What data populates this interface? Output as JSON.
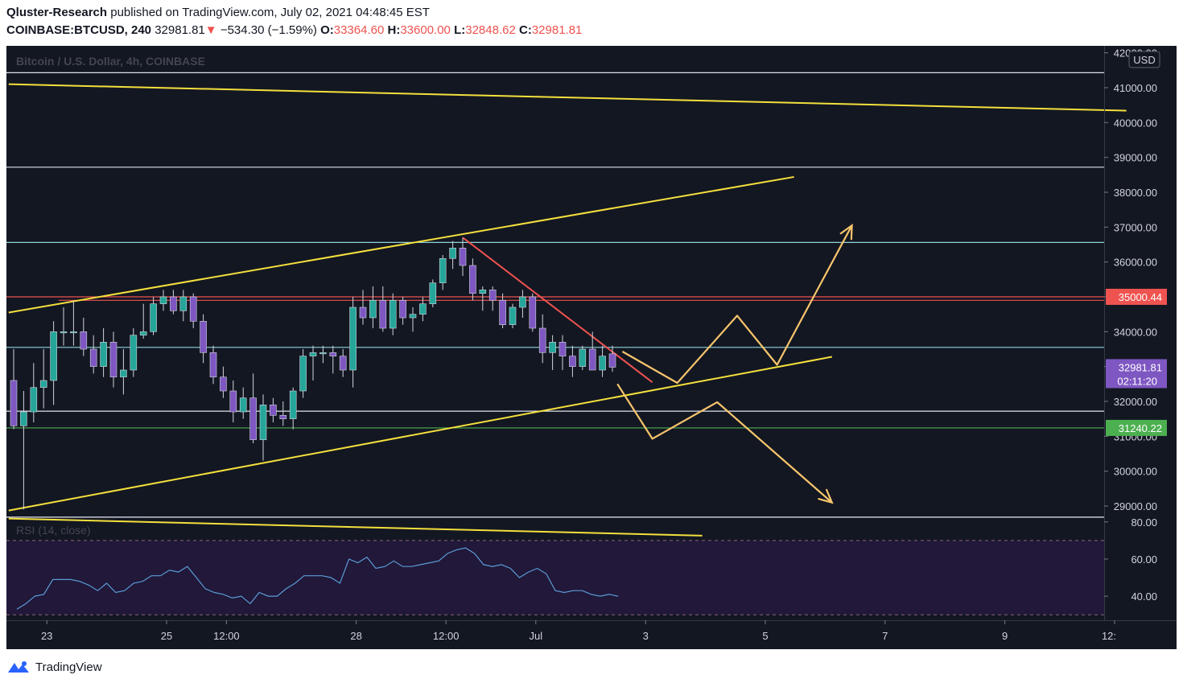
{
  "header": {
    "author": "Qluster-Research",
    "published": "published on TradingView.com, July 02, 2021 04:48:45 EST",
    "symbol": "COINBASE:BTCUSD, 240",
    "last": "32981.81",
    "change_arrow": "▼",
    "change": "−534.30 (−1.59%)",
    "o_label": "O:",
    "o_value": "33364.60",
    "h_label": "H:",
    "h_value": "33600.00",
    "l_label": "L:",
    "l_value": "32848.62",
    "c_label": "C:",
    "c_value": "32981.81"
  },
  "footer": {
    "brand": "TradingView",
    "logo_icon": "tradingview-logo-icon"
  },
  "colors": {
    "background": "#131722",
    "rsi_band": "#21183a",
    "up": "#26a69a",
    "down": "#7e57c2",
    "yellow": "#f5e03c",
    "orange_path": "#f7c56c",
    "red_line": "#ef5350",
    "green_line": "#4caf50",
    "cyan_line": "#8fd3dc",
    "white_line": "#e0e3eb",
    "axis_text": "#d1d4dc"
  },
  "chart_data": {
    "type": "candlestick",
    "title": "Bitcoin / U.S. Dollar, 4h, COINBASE",
    "currency_button": "USD",
    "y_ticks": [
      "42000.00",
      "41000.00",
      "40000.00",
      "39000.00",
      "38000.00",
      "37000.00",
      "36000.00",
      "35000.00",
      "34000.00",
      "33000.00",
      "32000.00",
      "31000.00",
      "30000.00",
      "29000.00"
    ],
    "ylim": [
      28700,
      42200
    ],
    "x_ticks": [
      {
        "label": "23",
        "bar": 3
      },
      {
        "label": "25",
        "bar": 15
      },
      {
        "label": "12:00",
        "bar": 21
      },
      {
        "label": "28",
        "bar": 34
      },
      {
        "label": "12:00",
        "bar": 43
      },
      {
        "label": "Jul",
        "bar": 52
      },
      {
        "label": "3",
        "bar": 63
      },
      {
        "label": "5",
        "bar": 75
      },
      {
        "label": "7",
        "bar": 87
      },
      {
        "label": "9",
        "bar": 99
      },
      {
        "label": "12:",
        "bar": 110
      }
    ],
    "price_labels": [
      {
        "value": "35000.44",
        "price": 35000.44,
        "color": "#ef5350"
      },
      {
        "value": "32981.81",
        "sub": "02:11:20",
        "price": 32981.81,
        "color": "#7e57c2"
      },
      {
        "value": "31240.22",
        "price": 31240.22,
        "color": "#4caf50"
      }
    ],
    "candles": [
      {
        "o": 32600,
        "h": 33500,
        "l": 31200,
        "c": 31300
      },
      {
        "o": 31300,
        "h": 32300,
        "l": 28900,
        "c": 31700
      },
      {
        "o": 31700,
        "h": 33100,
        "l": 31400,
        "c": 32400
      },
      {
        "o": 32400,
        "h": 33500,
        "l": 31800,
        "c": 32600
      },
      {
        "o": 32600,
        "h": 34300,
        "l": 31900,
        "c": 34000
      },
      {
        "o": 34000,
        "h": 34700,
        "l": 33600,
        "c": 34000
      },
      {
        "o": 34000,
        "h": 34900,
        "l": 33600,
        "c": 34000
      },
      {
        "o": 34000,
        "h": 34400,
        "l": 33300,
        "c": 33500
      },
      {
        "o": 33500,
        "h": 33900,
        "l": 32800,
        "c": 33000
      },
      {
        "o": 33000,
        "h": 34100,
        "l": 32700,
        "c": 33700
      },
      {
        "o": 33700,
        "h": 34000,
        "l": 32400,
        "c": 32700
      },
      {
        "o": 32700,
        "h": 33500,
        "l": 32200,
        "c": 32900
      },
      {
        "o": 32900,
        "h": 34100,
        "l": 32700,
        "c": 33900
      },
      {
        "o": 33900,
        "h": 34800,
        "l": 33800,
        "c": 34000
      },
      {
        "o": 34000,
        "h": 35000,
        "l": 33900,
        "c": 34800
      },
      {
        "o": 34800,
        "h": 35200,
        "l": 34600,
        "c": 35000
      },
      {
        "o": 35000,
        "h": 35200,
        "l": 34500,
        "c": 34600
      },
      {
        "o": 34600,
        "h": 35200,
        "l": 34300,
        "c": 35000
      },
      {
        "o": 35000,
        "h": 35100,
        "l": 34100,
        "c": 34300
      },
      {
        "o": 34300,
        "h": 34500,
        "l": 33100,
        "c": 33400
      },
      {
        "o": 33400,
        "h": 33600,
        "l": 32500,
        "c": 32700
      },
      {
        "o": 32700,
        "h": 33000,
        "l": 32100,
        "c": 32300
      },
      {
        "o": 32300,
        "h": 32600,
        "l": 31400,
        "c": 31700
      },
      {
        "o": 31700,
        "h": 32400,
        "l": 31500,
        "c": 32100
      },
      {
        "o": 32100,
        "h": 32800,
        "l": 30800,
        "c": 30900
      },
      {
        "o": 30900,
        "h": 32200,
        "l": 30300,
        "c": 31900
      },
      {
        "o": 31900,
        "h": 32100,
        "l": 31400,
        "c": 31600
      },
      {
        "o": 31600,
        "h": 32000,
        "l": 31300,
        "c": 31500
      },
      {
        "o": 31500,
        "h": 32400,
        "l": 31200,
        "c": 32300
      },
      {
        "o": 32300,
        "h": 33500,
        "l": 32100,
        "c": 33300
      },
      {
        "o": 33300,
        "h": 33600,
        "l": 32600,
        "c": 33400
      },
      {
        "o": 33400,
        "h": 33600,
        "l": 33100,
        "c": 33400
      },
      {
        "o": 33400,
        "h": 33600,
        "l": 32800,
        "c": 33300
      },
      {
        "o": 33300,
        "h": 33500,
        "l": 32700,
        "c": 32900
      },
      {
        "o": 32900,
        "h": 35000,
        "l": 32400,
        "c": 34700
      },
      {
        "o": 34700,
        "h": 35200,
        "l": 34200,
        "c": 34400
      },
      {
        "o": 34400,
        "h": 35300,
        "l": 34100,
        "c": 34900
      },
      {
        "o": 34900,
        "h": 35300,
        "l": 34000,
        "c": 34100
      },
      {
        "o": 34100,
        "h": 35100,
        "l": 33900,
        "c": 34900
      },
      {
        "o": 34900,
        "h": 35000,
        "l": 34200,
        "c": 34400
      },
      {
        "o": 34400,
        "h": 34700,
        "l": 34000,
        "c": 34500
      },
      {
        "o": 34500,
        "h": 35000,
        "l": 34300,
        "c": 34800
      },
      {
        "o": 34800,
        "h": 35500,
        "l": 34700,
        "c": 35400
      },
      {
        "o": 35400,
        "h": 36200,
        "l": 35200,
        "c": 36100
      },
      {
        "o": 36100,
        "h": 36600,
        "l": 35800,
        "c": 36400
      },
      {
        "o": 36400,
        "h": 36700,
        "l": 35600,
        "c": 35900
      },
      {
        "o": 35900,
        "h": 36100,
        "l": 34900,
        "c": 35100
      },
      {
        "o": 35100,
        "h": 35300,
        "l": 34600,
        "c": 35200
      },
      {
        "o": 35200,
        "h": 35300,
        "l": 34600,
        "c": 34900
      },
      {
        "o": 34900,
        "h": 35100,
        "l": 34100,
        "c": 34200
      },
      {
        "o": 34200,
        "h": 34800,
        "l": 34100,
        "c": 34700
      },
      {
        "o": 34700,
        "h": 35200,
        "l": 34400,
        "c": 35000
      },
      {
        "o": 35000,
        "h": 35100,
        "l": 34000,
        "c": 34100
      },
      {
        "o": 34100,
        "h": 34500,
        "l": 33100,
        "c": 33400
      },
      {
        "o": 33400,
        "h": 33900,
        "l": 32900,
        "c": 33700
      },
      {
        "o": 33700,
        "h": 33900,
        "l": 32900,
        "c": 33300
      },
      {
        "o": 33300,
        "h": 33600,
        "l": 32700,
        "c": 33000
      },
      {
        "o": 33000,
        "h": 33600,
        "l": 32900,
        "c": 33500
      },
      {
        "o": 33500,
        "h": 34000,
        "l": 32900,
        "c": 32900
      },
      {
        "o": 32900,
        "h": 33600,
        "l": 32700,
        "c": 33300
      },
      {
        "o": 33364.6,
        "h": 33600,
        "l": 32848.62,
        "c": 32981.81
      }
    ],
    "horizontal_lines": [
      {
        "price": 41430,
        "color": "#e0e3eb",
        "x0": 0
      },
      {
        "price": 38720,
        "color": "#e0e3eb",
        "x0": 0
      },
      {
        "price": 36560,
        "color": "#8fd3dc",
        "x0": 0
      },
      {
        "price": 35000.44,
        "color": "#ef5350",
        "x0": 0
      },
      {
        "price": 34900,
        "color": "#ef5350",
        "x0": 4.5
      },
      {
        "price": 33550,
        "color": "#8fd3dc",
        "x0": 0
      },
      {
        "price": 31720,
        "color": "#e0e3eb",
        "x0": 0
      },
      {
        "price": 31240.22,
        "color": "#4caf50",
        "x0": 0
      },
      {
        "price": 28680,
        "color": "#e0e3eb",
        "x0": 0
      }
    ],
    "trend_lines": [
      {
        "from": [
          -0.5,
          41100
        ],
        "to": [
          111.5,
          40340
        ],
        "color": "#f5e03c"
      },
      {
        "from": [
          -0.5,
          34550
        ],
        "to": [
          78.2,
          38440
        ],
        "color": "#f5e03c"
      },
      {
        "from": [
          -0.5,
          28870
        ],
        "to": [
          82,
          33280
        ],
        "color": "#f5e03c"
      },
      {
        "from": [
          -0.5,
          28640
        ],
        "to": [
          69,
          28150
        ],
        "color": "#f5e03c"
      },
      {
        "from": [
          45,
          36700
        ],
        "to": [
          64,
          32550
        ],
        "color": "#ef5350"
      }
    ],
    "projection_up": [
      [
        61,
        33430
      ],
      [
        66.5,
        32530
      ],
      [
        72.5,
        34460
      ],
      [
        76.5,
        33050
      ],
      [
        84,
        37050
      ]
    ],
    "projection_down": [
      [
        60.5,
        32500
      ],
      [
        64,
        30930
      ],
      [
        70.5,
        31980
      ],
      [
        82,
        29100
      ]
    ],
    "rsi": {
      "label": "RSI (14, close)",
      "levels": [
        70,
        30
      ],
      "ticks": [
        "80.00",
        "60.00",
        "40.00"
      ],
      "ylim": [
        27.5,
        82.5
      ],
      "values": [
        33,
        36,
        40,
        41,
        49,
        49,
        49,
        48,
        46,
        43,
        47,
        42,
        43,
        47,
        48,
        51,
        51,
        54,
        53,
        56,
        50,
        44,
        42,
        41,
        39,
        40,
        36,
        42,
        40,
        40,
        44,
        47,
        51,
        51,
        51,
        50,
        47,
        60,
        58,
        61,
        55,
        56,
        59,
        56,
        56,
        57,
        58,
        59,
        63,
        65,
        66,
        63,
        57,
        56,
        57,
        55,
        50,
        53,
        55,
        52,
        43,
        42,
        43,
        43,
        41,
        40,
        41,
        40
      ]
    }
  }
}
